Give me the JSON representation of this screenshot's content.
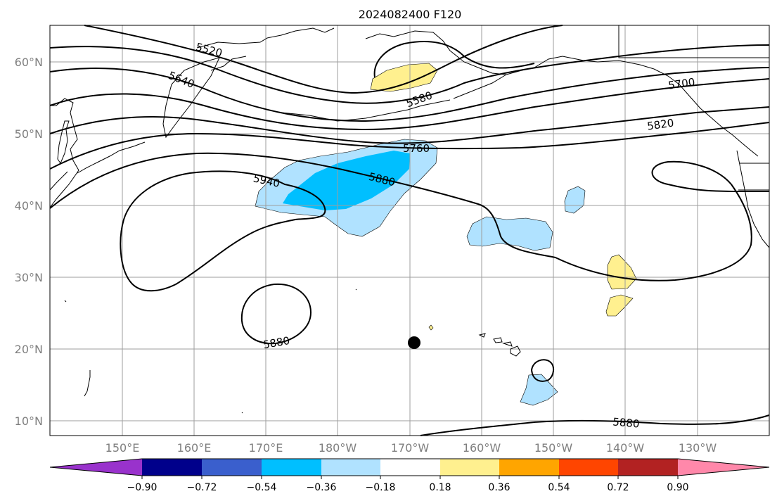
{
  "title": "2024082400 F120",
  "lat_labels": [
    "60°N",
    "50°N",
    "40°N",
    "30°N",
    "20°N",
    "10°N"
  ],
  "lon_labels": [
    "150°E",
    "160°E",
    "170°E",
    "180°W",
    "170°W",
    "160°W",
    "150°W",
    "140°W",
    "130°W"
  ],
  "contour_labels": [
    "5520",
    "5640",
    "5580",
    "5700",
    "5760",
    "5820",
    "5940",
    "5880",
    "5880",
    "5880"
  ],
  "colorbar": {
    "ticks": [
      "−0.90",
      "−0.72",
      "−0.54",
      "−0.36",
      "−0.18",
      "0.18",
      "0.36",
      "0.54",
      "0.72",
      "0.90"
    ],
    "colors": [
      "#9932cc",
      "#00008b",
      "#3a5fcd",
      "#00bfff",
      "#b0e2ff",
      "#ffffff",
      "#fff08f",
      "#ffa500",
      "#ff4500",
      "#b22222",
      "#ff88aa"
    ]
  }
}
